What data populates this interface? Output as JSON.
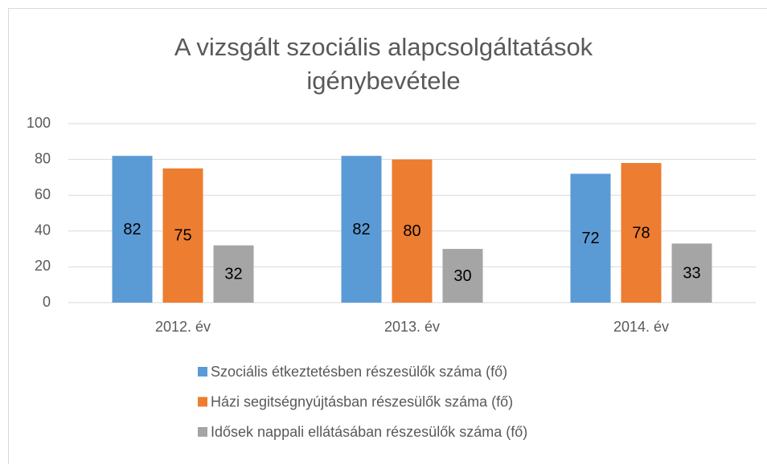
{
  "chart_data": {
    "type": "bar",
    "title": "A vizsgált szociális alapcsolgáltatások igénybevétele",
    "categories": [
      "2012. év",
      "2013. év",
      "2014. év"
    ],
    "series": [
      {
        "name": "Szociális étkeztetésben részesülők száma (fő)",
        "color": "#5b9bd5",
        "values": [
          82,
          82,
          72
        ]
      },
      {
        "name": "Házi segitségnyújtásban részesülők száma (fő)",
        "color": "#ed7d31",
        "values": [
          75,
          80,
          78
        ]
      },
      {
        "name": "Idősek nappali ellátásában részesülők száma (fő)",
        "color": "#a5a5a5",
        "values": [
          32,
          30,
          33
        ]
      }
    ],
    "ylim": [
      0,
      100
    ],
    "yticks": [
      0,
      20,
      40,
      60,
      80,
      100
    ],
    "grid": true,
    "legend": "bottom",
    "data_labels": true
  }
}
